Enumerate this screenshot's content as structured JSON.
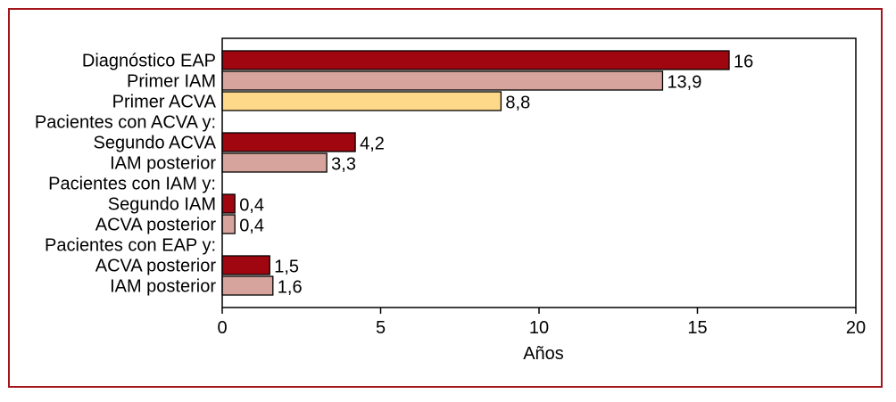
{
  "chart_data": {
    "type": "bar",
    "orientation": "horizontal",
    "xlabel": "Años",
    "xlim": [
      0,
      20
    ],
    "xticks": [
      0,
      5,
      10,
      15,
      20
    ],
    "grid": false,
    "colors": {
      "dark_red": "#a0060f",
      "pink": "#d6a49c",
      "yellow": "#ffd98a",
      "frame": "#a3161c"
    },
    "rows": [
      {
        "label": "Diagnóstico EAP",
        "value": 16,
        "value_label": "16",
        "color": "dark_red"
      },
      {
        "label": "Primer IAM",
        "value": 13.9,
        "value_label": "13,9",
        "color": "pink"
      },
      {
        "label": "Primer ACVA",
        "value": 8.8,
        "value_label": "8,8",
        "color": "yellow"
      },
      {
        "label": "Pacientes con ACVA y:",
        "value": null
      },
      {
        "label": "Segundo ACVA",
        "value": 4.2,
        "value_label": "4,2",
        "color": "dark_red"
      },
      {
        "label": "IAM posterior",
        "value": 3.3,
        "value_label": "3,3",
        "color": "pink"
      },
      {
        "label": "Pacientes con IAM y:",
        "value": null
      },
      {
        "label": "Segundo IAM",
        "value": 0.4,
        "value_label": "0,4",
        "color": "dark_red"
      },
      {
        "label": "ACVA posterior",
        "value": 0.4,
        "value_label": "0,4",
        "color": "pink"
      },
      {
        "label": "Pacientes con EAP y:",
        "value": null
      },
      {
        "label": "ACVA posterior",
        "value": 1.5,
        "value_label": "1,5",
        "color": "dark_red"
      },
      {
        "label": "IAM posterior",
        "value": 1.6,
        "value_label": "1,6",
        "color": "pink"
      }
    ]
  }
}
